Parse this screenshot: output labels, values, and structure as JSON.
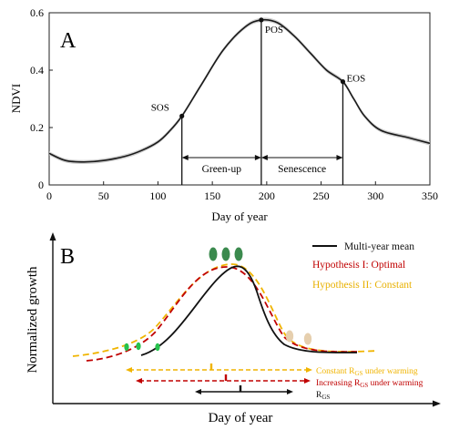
{
  "chart_data": [
    {
      "panel_label": "A",
      "type": "line",
      "title": "",
      "xlabel": "Day of year",
      "ylabel": "NDVI",
      "xlim": [
        0,
        350
      ],
      "ylim": [
        0,
        0.6
      ],
      "x_ticks": [
        0,
        50,
        100,
        150,
        200,
        250,
        300,
        350
      ],
      "y_ticks": [
        0,
        0.2,
        0.4,
        0.6
      ],
      "y_tick_labels": [
        "0",
        "0.2",
        "0.4",
        "0.6"
      ],
      "grid": false,
      "series": [
        {
          "x": [
            0,
            15,
            32,
            50,
            70,
            85,
            100,
            110,
            122,
            140,
            160,
            180,
            195,
            210,
            225,
            240,
            255,
            270,
            280,
            290,
            305,
            330,
            350
          ],
          "y": [
            0.11,
            0.085,
            0.08,
            0.085,
            0.1,
            0.12,
            0.15,
            0.185,
            0.24,
            0.35,
            0.47,
            0.55,
            0.575,
            0.565,
            0.52,
            0.46,
            0.4,
            0.36,
            0.3,
            0.24,
            0.19,
            0.165,
            0.145
          ]
        }
      ],
      "points": [
        {
          "label": "SOS",
          "x": 122,
          "y": 0.24
        },
        {
          "label": "POS",
          "x": 195,
          "y": 0.575
        },
        {
          "label": "EOS",
          "x": 270,
          "y": 0.36
        }
      ],
      "intervals": [
        {
          "label": "Green-up",
          "from": 122,
          "to": 195
        },
        {
          "label": "Senescence",
          "from": 195,
          "to": 270
        }
      ]
    },
    {
      "panel_label": "B",
      "type": "line",
      "title": "",
      "xlabel": "Day of year",
      "ylabel": "Normalized growth",
      "legend_position": "top-right",
      "legend": [
        {
          "name": "Multi-year mean",
          "color": "#111111",
          "style": "solid"
        },
        {
          "name": "Hypothesis I: Optimal",
          "color": "#c00000",
          "style": "dashed"
        },
        {
          "name": "Hypothesis II: Constant",
          "color": "#f0b400",
          "style": "dashed"
        }
      ],
      "bar_labels": [
        {
          "text": "Constant R",
          "sub": "GS",
          "after": " under warming",
          "color": "#f0b400"
        },
        {
          "text": "Increasing R",
          "sub": "GS",
          "after": " under warming",
          "color": "#c00000"
        },
        {
          "text": "R",
          "sub": "GS",
          "after": "",
          "color": "#111111"
        }
      ]
    }
  ]
}
